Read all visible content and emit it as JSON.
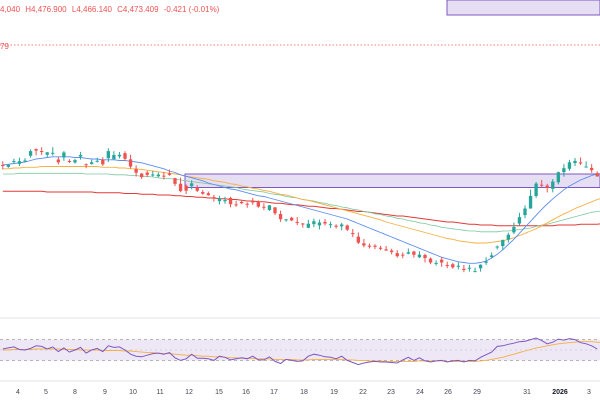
{
  "header": {
    "open": "4,040",
    "high": "H4,476.900",
    "low": "L4,466.140",
    "close": "C4,473.409",
    "change": "-0.421 (-0.01%)",
    "price_label": "79"
  },
  "colors": {
    "up": "#26a69a",
    "down": "#ef5350",
    "zone_fill": "#d1c4e9",
    "zone_stroke": "#7e57c2",
    "ma_fast": "#5b8def",
    "ma_mid": "#f5b041",
    "ma_slow": "#7ec8a0",
    "ma_long": "#e53935",
    "rsi": "#7e57c2",
    "rsi_ma": "#f5b041",
    "rsi_band": "#ede7f6"
  },
  "chart_data": {
    "type": "candlestick",
    "x_tick_labels": [
      "4",
      "5",
      "8",
      "9",
      "10",
      "11",
      "12",
      "15",
      "16",
      "17",
      "18",
      "19",
      "22",
      "23",
      "24",
      "26",
      "29",
      "31",
      "2026",
      "3"
    ],
    "y_range": [
      0,
      400
    ],
    "candles": [
      [
        180.0,
        179.0,
        185.0,
        174.0
      ],
      [
        177.5,
        180.3,
        181.4,
        176.3
      ],
      [
        184.3,
        185.3,
        188.4,
        181.3
      ],
      [
        181.5,
        185.1,
        189.7,
        178.6
      ],
      [
        185.2,
        186.0,
        189.2,
        183.7
      ],
      [
        192.3,
        198.5,
        200.9,
        189.8
      ],
      [
        201.2,
        199.2,
        202.1,
        192.9
      ],
      [
        198.6,
        197.8,
        203.7,
        193.3
      ],
      [
        193.8,
        196.9,
        197.4,
        190.7
      ],
      [
        195.7,
        196.3,
        203.7,
        192.4
      ],
      [
        187.3,
        183.6,
        190.9,
        180.7
      ],
      [
        190.1,
        196.7,
        198.6,
        185.5
      ],
      [
        185.3,
        184.9,
        187.7,
        182.5
      ],
      [
        183.4,
        186.5,
        188.4,
        181.8
      ],
      [
        191.2,
        193.4,
        197.5,
        187.1
      ],
      [
        181.0,
        179.8,
        182.0,
        175.7
      ],
      [
        181.4,
        183.6,
        187.1,
        180.4
      ],
      [
        185.0,
        185.6,
        189.6,
        183.3
      ],
      [
        186.8,
        180.9,
        190.4,
        178.6
      ],
      [
        189.1,
        198.5,
        202.3,
        184.0
      ],
      [
        187.7,
        193.3,
        198.4,
        187.5
      ],
      [
        191.5,
        193.6,
        197.4,
        188.8
      ],
      [
        195.8,
        188.3,
        198.3,
        185.3
      ],
      [
        187.6,
        177.9,
        193.6,
        175.4
      ],
      [
        174.6,
        169.7,
        179.6,
        164.5
      ],
      [
        168.5,
        163.9,
        169.3,
        161.3
      ],
      [
        169.9,
        166.9,
        172.1,
        163.9
      ],
      [
        166.0,
        167.3,
        172.2,
        164.5
      ],
      [
        165.0,
        167.2,
        170.2,
        163.7
      ],
      [
        165.8,
        165.4,
        170.7,
        160.6
      ],
      [
        168.6,
        166.8,
        173.9,
        165.7
      ],
      [
        162.5,
        154.9,
        163.0,
        151.9
      ],
      [
        155.0,
        145.2,
        163.2,
        143.6
      ],
      [
        152.3,
        145.7,
        154.1,
        141.2
      ],
      [
        151.8,
        155.6,
        159.6,
        147.5
      ],
      [
        149.9,
        145.6,
        153.1,
        144.0
      ],
      [
        144.0,
        141.7,
        146.7,
        140.3
      ],
      [
        142.3,
        139.8,
        144.7,
        139.0
      ],
      [
        137.2,
        135.2,
        140.3,
        131.1
      ],
      [
        131.8,
        135.6,
        139.0,
        127.4
      ],
      [
        131.7,
        133.3,
        137.6,
        128.4
      ],
      [
        136.1,
        127.8,
        137.5,
        123.6
      ],
      [
        127.5,
        127.3,
        132.3,
        124.2
      ],
      [
        130.7,
        129.1,
        132.1,
        127.8
      ],
      [
        128.4,
        127.4,
        130.2,
        123.0
      ],
      [
        131.7,
        130.0,
        136.2,
        126.9
      ],
      [
        130.5,
        124.5,
        132.8,
        122.9
      ],
      [
        124.3,
        123.8,
        129.1,
        119.8
      ],
      [
        120.0,
        126.3,
        126.6,
        118.8
      ],
      [
        123.5,
        115.6,
        123.8,
        113.1
      ],
      [
        114.7,
        107.7,
        119.2,
        104.2
      ],
      [
        107.0,
        107.5,
        108.2,
        104.4
      ],
      [
        109.7,
        106.1,
        110.9,
        105.2
      ],
      [
        104.1,
        102.9,
        110.7,
        99.8
      ],
      [
        102.0,
        100.7,
        102.7,
        96.6
      ],
      [
        96.3,
        101.7,
        106.8,
        95.7
      ],
      [
        101.1,
        105.0,
        108.5,
        97.1
      ],
      [
        99.5,
        103.3,
        107.3,
        94.1
      ],
      [
        104.1,
        102.1,
        107.9,
        99.3
      ],
      [
        101.1,
        101.1,
        104.5,
        96.0
      ],
      [
        99.0,
        97.6,
        101.0,
        95.3
      ],
      [
        98.3,
        100.7,
        103.0,
        92.9
      ],
      [
        99.4,
        93.8,
        100.6,
        91.9
      ],
      [
        89.3,
        87.8,
        94.7,
        83.8
      ],
      [
        84.5,
        76.4,
        90.1,
        74.7
      ],
      [
        75.6,
        72.6,
        81.4,
        70.2
      ],
      [
        72.5,
        71.0,
        75.3,
        68.6
      ],
      [
        72.4,
        70.9,
        74.5,
        67.9
      ],
      [
        69.7,
        68.2,
        72.2,
        66.4
      ],
      [
        67.6,
        66.0,
        72.1,
        65.5
      ],
      [
        65.9,
        63.9,
        68.4,
        60.8
      ],
      [
        62.5,
        58.4,
        66.4,
        56.5
      ],
      [
        60.5,
        60.1,
        63.4,
        55.5
      ],
      [
        61.7,
        63.6,
        68.7,
        60.9
      ],
      [
        64.6,
        60.3,
        65.7,
        56.5
      ],
      [
        57.0,
        60.5,
        65.0,
        55.8
      ],
      [
        60.1,
        55.9,
        61.8,
        50.1
      ],
      [
        55.2,
        50.0,
        56.8,
        47.7
      ],
      [
        49.3,
        49.5,
        52.9,
        45.9
      ],
      [
        53.8,
        50.0,
        57.4,
        44.3
      ],
      [
        46.7,
        46.5,
        51.1,
        42.4
      ],
      [
        47.7,
        43.5,
        49.6,
        41.7
      ],
      [
        44.5,
        45.7,
        50.3,
        40.7
      ],
      [
        41.6,
        40.0,
        46.7,
        37.1
      ],
      [
        41.7,
        43.0,
        47.0,
        37.8
      ],
      [
        37.8,
        38.5,
        43.2,
        37.2
      ],
      [
        42.3,
        47.0,
        47.6,
        37.8
      ],
      [
        49.6,
        51.4,
        57.0,
        46.8
      ],
      [
        57.3,
        59.5,
        63.3,
        55.7
      ],
      [
        70.9,
        71.3,
        72.6,
        67.4
      ],
      [
        72.0,
        80.1,
        80.5,
        66.5
      ],
      [
        80.4,
        87.1,
        89.8,
        76.6
      ],
      [
        90.1,
        97.3,
        103.3,
        87.9
      ],
      [
        101.9,
        110.5,
        116.3,
        99.2
      ],
      [
        113.2,
        122.0,
        126.2,
        109.1
      ],
      [
        121.9,
        138.8,
        147.1,
        121.9
      ],
      [
        138.7,
        155.2,
        157.5,
        136.2
      ],
      [
        153.7,
        153.3,
        160.2,
        150.1
      ],
      [
        152.6,
        149.4,
        154.9,
        143.5
      ],
      [
        148.2,
        158.0,
        161.4,
        143.5
      ],
      [
        156.9,
        170.4,
        171.2,
        154.1
      ],
      [
        170.5,
        175.8,
        181.2,
        164.3
      ],
      [
        174.9,
        183.6,
        186.9,
        172.2
      ],
      [
        182.6,
        185.5,
        189.3,
        178.5
      ],
      [
        183.5,
        182.0,
        190.1,
        179.9
      ],
      [
        177.8,
        177.9,
        184.8,
        176.9
      ],
      [
        176.1,
        173.1,
        181.2,
        169.6
      ],
      [
        169.2,
        164.7,
        171.5,
        164.4
      ]
    ],
    "support_zone": [
      150,
      168
    ],
    "resistance_zone": [
      380,
      400
    ],
    "dotted_price_line": 340,
    "ma_fast": [
      180,
      181,
      182,
      183,
      184,
      186,
      188,
      189,
      190,
      191,
      191,
      191,
      191,
      190,
      190,
      189,
      188,
      188,
      187,
      187,
      187,
      186,
      186,
      185,
      184,
      183,
      181,
      179,
      177,
      175,
      172,
      170,
      167,
      165,
      163,
      161,
      159,
      156,
      154,
      152,
      150,
      148,
      147,
      145,
      143,
      141,
      139,
      138,
      136,
      134,
      132,
      130,
      128,
      126,
      124,
      122,
      120,
      118,
      116,
      114,
      112,
      110,
      108,
      105,
      102,
      99,
      96,
      93,
      90,
      87,
      84,
      81,
      78,
      75,
      72,
      69,
      66,
      63,
      60,
      57,
      55,
      53,
      51,
      50,
      49,
      49,
      50,
      52,
      56,
      61,
      67,
      74,
      81,
      89,
      97,
      105,
      113,
      121,
      128,
      135,
      141,
      147,
      152,
      156,
      160,
      163,
      166,
      168,
      169
    ],
    "ma_mid": [
      175,
      175,
      176,
      176,
      177,
      177,
      177,
      178,
      178,
      178,
      178,
      178,
      178,
      178,
      178,
      178,
      178,
      178,
      177,
      177,
      177,
      176,
      176,
      175,
      175,
      174,
      173,
      172,
      171,
      170,
      169,
      168,
      167,
      165,
      164,
      163,
      162,
      161,
      159,
      158,
      157,
      155,
      154,
      152,
      151,
      149,
      148,
      146,
      145,
      143,
      141,
      140,
      138,
      136,
      134,
      133,
      131,
      129,
      127,
      125,
      123,
      121,
      119,
      117,
      115,
      113,
      111,
      109,
      107,
      104,
      102,
      100,
      98,
      96,
      94,
      92,
      90,
      88,
      86,
      84,
      82,
      81,
      79,
      78,
      77,
      76,
      76,
      76,
      77,
      78,
      79,
      81,
      83,
      86,
      89,
      92,
      95,
      99,
      103,
      107,
      111,
      115,
      118,
      122,
      125,
      128,
      131,
      134,
      136
    ],
    "ma_slow": [
      168,
      168,
      168,
      169,
      169,
      169,
      169,
      169,
      169,
      169,
      169,
      169,
      169,
      169,
      169,
      168,
      168,
      168,
      168,
      168,
      167,
      167,
      167,
      166,
      166,
      165,
      165,
      164,
      163,
      162,
      162,
      161,
      160,
      159,
      158,
      157,
      156,
      155,
      154,
      153,
      152,
      151,
      150,
      148,
      147,
      146,
      145,
      144,
      142,
      141,
      140,
      138,
      137,
      136,
      134,
      133,
      132,
      130,
      129,
      127,
      126,
      124,
      123,
      121,
      120,
      118,
      117,
      115,
      114,
      112,
      111,
      109,
      108,
      106,
      105,
      103,
      102,
      100,
      99,
      97,
      96,
      95,
      94,
      93,
      92,
      92,
      91,
      91,
      91,
      91,
      92,
      92,
      93,
      94,
      95,
      96,
      98,
      100,
      101,
      103,
      105,
      107,
      109,
      111,
      113,
      115,
      117,
      118,
      119
    ],
    "ma_long": [
      145,
      145,
      145,
      145,
      145,
      145,
      145,
      145,
      144,
      144,
      144,
      144,
      144,
      144,
      144,
      144,
      144,
      143,
      143,
      143,
      143,
      143,
      142,
      142,
      142,
      141,
      141,
      141,
      140,
      140,
      140,
      139,
      139,
      138,
      138,
      137,
      137,
      136,
      136,
      135,
      135,
      134,
      134,
      133,
      132,
      132,
      131,
      131,
      130,
      129,
      129,
      128,
      127,
      127,
      126,
      125,
      125,
      124,
      123,
      122,
      122,
      121,
      120,
      119,
      118,
      118,
      117,
      116,
      115,
      114,
      113,
      112,
      112,
      111,
      110,
      109,
      108,
      107,
      106,
      105,
      104,
      104,
      103,
      102,
      101,
      101,
      100,
      100,
      100,
      99,
      99,
      99,
      99,
      99,
      99,
      99,
      99,
      99,
      99,
      99,
      100,
      100,
      100,
      100,
      101,
      101,
      101,
      101,
      102
    ],
    "rsi": [
      52,
      54,
      56,
      51,
      50,
      53,
      58,
      57,
      52,
      56,
      47,
      54,
      46,
      50,
      55,
      44,
      50,
      53,
      47,
      58,
      55,
      56,
      50,
      42,
      38,
      37,
      40,
      43,
      44,
      42,
      45,
      35,
      30,
      33,
      42,
      34,
      34,
      33,
      30,
      38,
      36,
      31,
      33,
      35,
      33,
      38,
      31,
      31,
      37,
      28,
      24,
      32,
      30,
      28,
      29,
      38,
      42,
      40,
      37,
      36,
      33,
      38,
      30,
      26,
      22,
      25,
      27,
      28,
      27,
      27,
      26,
      25,
      31,
      36,
      30,
      35,
      29,
      27,
      29,
      30,
      27,
      29,
      30,
      27,
      30,
      29,
      36,
      41,
      46,
      57,
      58,
      61,
      63,
      66,
      67,
      70,
      73,
      68,
      62,
      65,
      71,
      69,
      72,
      70,
      64,
      62,
      58,
      52
    ],
    "rsi_ma": [
      50,
      50,
      51,
      51,
      51,
      51,
      52,
      52,
      52,
      52,
      52,
      51,
      51,
      51,
      50,
      50,
      50,
      50,
      49,
      49,
      49,
      49,
      48,
      48,
      47,
      46,
      45,
      45,
      44,
      43,
      43,
      42,
      41,
      40,
      40,
      39,
      38,
      38,
      37,
      37,
      36,
      35,
      35,
      34,
      34,
      34,
      33,
      33,
      33,
      32,
      32,
      32,
      32,
      31,
      31,
      31,
      32,
      32,
      32,
      32,
      32,
      32,
      31,
      31,
      30,
      30,
      29,
      29,
      29,
      28,
      28,
      28,
      28,
      28,
      28,
      29,
      29,
      29,
      29,
      29,
      28,
      28,
      28,
      28,
      28,
      28,
      29,
      30,
      32,
      34,
      36,
      39,
      42,
      45,
      48,
      51,
      54,
      56,
      58,
      60,
      62,
      63,
      64,
      65,
      66,
      66,
      66,
      65,
      64
    ],
    "rsi_band": [
      30,
      70
    ],
    "rsi_range": [
      0,
      100
    ]
  }
}
